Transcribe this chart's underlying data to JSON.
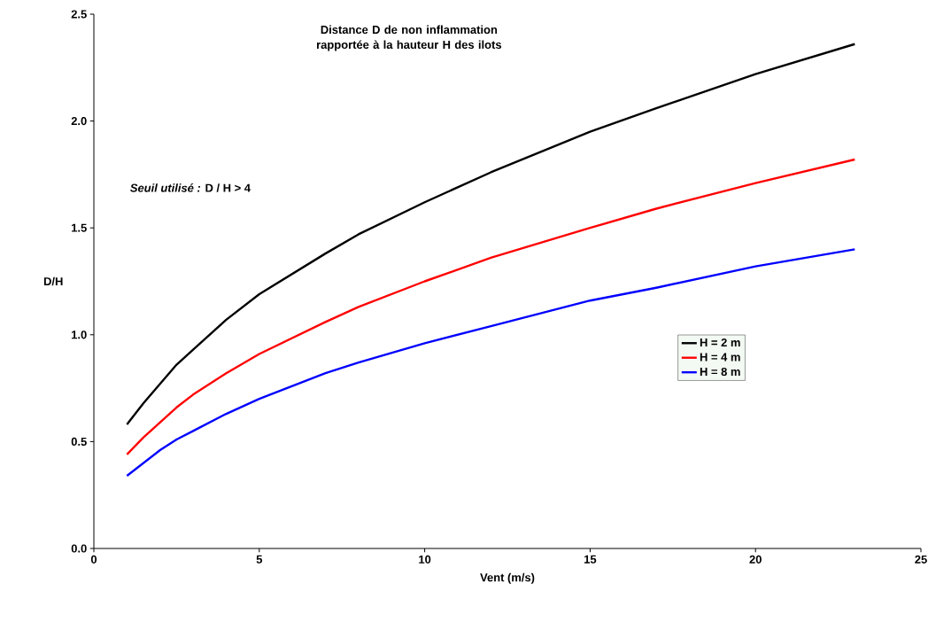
{
  "chart_data": {
    "type": "line",
    "title": "Distance D de non inflammation rapportée à la hauteur H des ilots",
    "xlabel": "Vent (m/s)",
    "ylabel": "D/H",
    "annotations": [
      "*Seuil utilisé :*  D / H > 4"
    ],
    "x": [
      1,
      1.5,
      2,
      2.5,
      3,
      4,
      5,
      7,
      8,
      10,
      12,
      15,
      17,
      20,
      23
    ],
    "series": [
      {
        "name": "H = 2 m",
        "color": "#000000",
        "values": [
          0.58,
          0.68,
          0.77,
          0.86,
          0.93,
          1.07,
          1.19,
          1.38,
          1.47,
          1.62,
          1.76,
          1.95,
          2.06,
          2.22,
          2.36
        ]
      },
      {
        "name": "H = 4 m",
        "color": "#ff0000",
        "values": [
          0.44,
          0.52,
          0.59,
          0.66,
          0.72,
          0.82,
          0.91,
          1.06,
          1.13,
          1.25,
          1.36,
          1.5,
          1.59,
          1.71,
          1.82
        ]
      },
      {
        "name": "H = 8 m",
        "color": "#0000ff",
        "values": [
          0.34,
          0.4,
          0.46,
          0.51,
          0.55,
          0.63,
          0.7,
          0.82,
          0.87,
          0.96,
          1.04,
          1.16,
          1.22,
          1.32,
          1.4
        ]
      }
    ],
    "xlim": [
      0,
      25
    ],
    "ylim": [
      0,
      2.5
    ],
    "xticks": [
      0,
      5,
      10,
      15,
      20,
      25
    ],
    "yticks": [
      {
        "value": 0,
        "label": "0.0"
      },
      {
        "value": 0.5,
        "label": "0.5"
      },
      {
        "value": 1,
        "label": "1.0"
      },
      {
        "value": 1.5,
        "label": "1.5"
      },
      {
        "value": 2,
        "label": "2.0"
      },
      {
        "value": 2.5,
        "label": "2.5"
      }
    ],
    "grid": false,
    "legend": "right",
    "marker": "none",
    "line_style": "solid"
  }
}
